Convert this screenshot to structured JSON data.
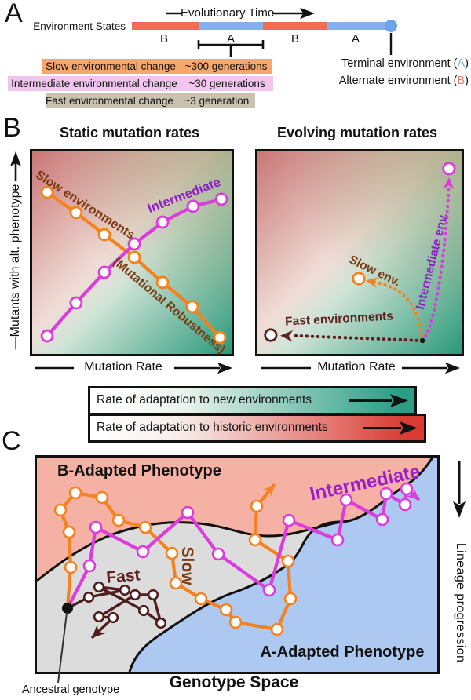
{
  "colors": {
    "orange": "#F5821F",
    "magenta": "#DD3CDD",
    "purple_text": "#8B1FC4",
    "brown_text": "#7C3A10",
    "maroon": "#5E1F1F",
    "fast_line": "#4F1D1D",
    "timeline_b": "#F26B59",
    "timeline_a": "#85B1E9",
    "slow_row_bg": "#F8A76C",
    "intermediate_row_bg": "#F0C5EE",
    "fast_row_bg": "#C9C2AE",
    "legend_green": "#2D9E86",
    "legend_red": "#D93A31",
    "region_b_fill": "#F5B2A4",
    "region_gray_fill": "#DCDCDC",
    "region_a_fill": "#AEC9F1"
  },
  "panel_a": {
    "label": "A",
    "timeline_title": "Evolutionary Time",
    "axis_label": "Environment States",
    "segments": [
      {
        "label": "B"
      },
      {
        "label": "A"
      },
      {
        "label": "B"
      },
      {
        "label": "A"
      }
    ],
    "rows": [
      {
        "label": "Slow environmental change",
        "value": "~300 generations"
      },
      {
        "label": "Intermediate environmental change",
        "value": "~30 generations"
      },
      {
        "label": "Fast environmental change",
        "value": "~3 generation"
      }
    ],
    "terminal_label": "Terminal environment ",
    "terminal_letter": "A",
    "alternate_label": "Alternate environment ",
    "alternate_letter": "B"
  },
  "panel_b": {
    "label": "B",
    "left": {
      "title": "Static mutation rates",
      "xlabel": "Mutation Rate",
      "ylabel": "—Mutants with alt. phenotype",
      "annotation": "(Mutational Robustness)",
      "series": [
        {
          "name": "Slow environments",
          "color": "#F5821F",
          "points": [
            [
              0.075,
              0.202
            ],
            [
              0.22,
              0.302
            ],
            [
              0.362,
              0.411
            ],
            [
              0.512,
              0.523
            ],
            [
              0.654,
              0.647
            ],
            [
              0.803,
              0.767
            ],
            [
              0.941,
              0.919
            ]
          ]
        },
        {
          "name": "Intermediate",
          "color": "#DD3CDD",
          "points": [
            [
              0.075,
              0.911
            ],
            [
              0.22,
              0.748
            ],
            [
              0.362,
              0.597
            ],
            [
              0.512,
              0.457
            ],
            [
              0.654,
              0.349
            ],
            [
              0.807,
              0.271
            ],
            [
              0.949,
              0.236
            ]
          ]
        }
      ]
    },
    "right": {
      "title": "Evolving mutation rates",
      "xlabel": "Mutation Rate",
      "start": [
        0.808,
        0.934
      ],
      "trajectories": [
        {
          "name": "Fast environments",
          "color": "#5E1F1F",
          "end": [
            0.065,
            0.907
          ]
        },
        {
          "name": "Slow env.",
          "color": "#F5821F",
          "end": [
            0.496,
            0.628
          ]
        },
        {
          "name": "Intermediate env.",
          "color": "#DD3CDD",
          "end": [
            0.938,
            0.085
          ]
        }
      ]
    }
  },
  "legend_bars": [
    {
      "text": "Rate of adaptation to new environments",
      "color": "#2D9E86"
    },
    {
      "text": "Rate of adaptation to historic environments",
      "color": "#D93A31"
    }
  ],
  "panel_c": {
    "label": "C",
    "region_b_label": "B-Adapted Phenotype",
    "region_a_label": "A-Adapted Phenotype",
    "xlabel": "Genotype Space",
    "ylabel": "Lineage progression",
    "ancestral_label": "Ancestral genotype",
    "paths": {
      "slow": {
        "label": "Slow",
        "color": "#F5821F",
        "points": [
          [
            39,
            192
          ],
          [
            43,
            140
          ],
          [
            41,
            95
          ],
          [
            30,
            67
          ],
          [
            49,
            45
          ],
          [
            83,
            51
          ],
          [
            104,
            80
          ],
          [
            138,
            89
          ],
          [
            172,
            122
          ],
          [
            177,
            160
          ],
          [
            209,
            180
          ],
          [
            241,
            194
          ],
          [
            253,
            210
          ],
          [
            306,
            219
          ],
          [
            323,
            180
          ],
          [
            320,
            132
          ],
          [
            278,
            105
          ],
          [
            280,
            62
          ]
        ],
        "arrow": [
          303,
          34
        ]
      },
      "intermediate": {
        "label": "Intermediate",
        "color": "#DD3CDD",
        "points": [
          [
            39,
            192
          ],
          [
            67,
            138
          ],
          [
            75,
            89
          ],
          [
            135,
            120
          ],
          [
            192,
            70
          ],
          [
            231,
            123
          ],
          [
            296,
            169
          ],
          [
            321,
            80
          ],
          [
            383,
            105
          ],
          [
            394,
            54
          ],
          [
            440,
            79
          ],
          [
            445,
            46
          ],
          [
            469,
            60
          ],
          [
            471,
            40
          ]
        ],
        "arrow": [
          487,
          54
        ]
      },
      "fast": {
        "label": "Fast",
        "color": "#4F1D1D",
        "points": [
          [
            39,
            192
          ],
          [
            66,
            178
          ],
          [
            112,
            169
          ],
          [
            79,
            165
          ],
          [
            136,
            195
          ],
          [
            158,
            211
          ],
          [
            148,
            175
          ],
          [
            125,
            175
          ],
          [
            79,
            203
          ],
          [
            97,
            204
          ]
        ],
        "arrow": [
          70,
          230
        ]
      }
    }
  },
  "chart_data": [
    {
      "type": "line",
      "title": "Static mutation rates",
      "xlabel": "Mutation Rate",
      "ylabel": "Mutants with alt. phenotype",
      "axis_ranges": "relative 0-1 (unlabeled conceptual axes)",
      "grid": false,
      "series": [
        {
          "name": "Slow environments (Mutational Robustness)",
          "x": [
            0.075,
            0.22,
            0.362,
            0.512,
            0.654,
            0.803,
            0.941
          ],
          "y": [
            0.798,
            0.698,
            0.589,
            0.477,
            0.353,
            0.233,
            0.081
          ]
        },
        {
          "name": "Intermediate",
          "x": [
            0.075,
            0.22,
            0.362,
            0.512,
            0.654,
            0.807,
            0.949
          ],
          "y": [
            0.089,
            0.252,
            0.403,
            0.543,
            0.651,
            0.729,
            0.764
          ]
        }
      ]
    },
    {
      "type": "scatter",
      "title": "Evolving mutation rates",
      "xlabel": "Mutation Rate",
      "ylabel": "Mutants with alt. phenotype",
      "start_point": [
        0.808,
        0.066
      ],
      "series": [
        {
          "name": "Fast environments",
          "end_point": [
            0.065,
            0.093
          ]
        },
        {
          "name": "Slow env.",
          "end_point": [
            0.496,
            0.372
          ]
        },
        {
          "name": "Intermediate env.",
          "end_point": [
            0.938,
            0.915
          ]
        }
      ]
    }
  ]
}
